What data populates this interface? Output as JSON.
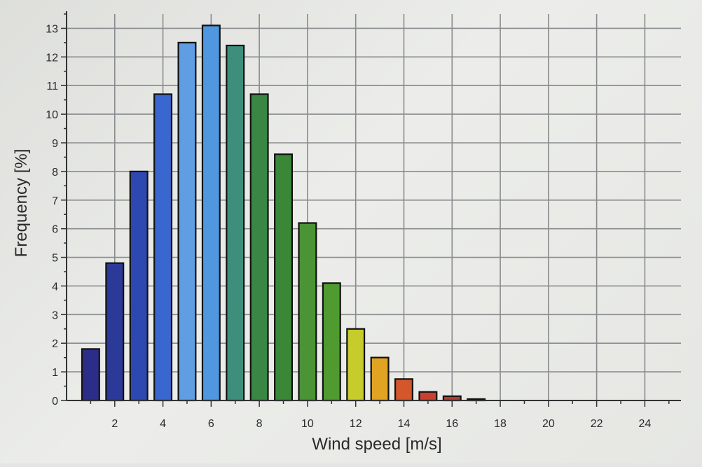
{
  "chart_data": {
    "type": "bar",
    "xlabel": "Wind speed [m/s]",
    "ylabel": "Frequency [%]",
    "x": [
      1,
      2,
      3,
      4,
      5,
      6,
      7,
      8,
      9,
      10,
      11,
      12,
      13,
      14,
      15,
      16,
      17
    ],
    "values": [
      1.8,
      4.8,
      8.0,
      10.7,
      12.5,
      13.1,
      12.4,
      10.7,
      8.6,
      6.2,
      4.1,
      2.5,
      1.5,
      0.75,
      0.3,
      0.15,
      0.05
    ],
    "bar_colors": [
      "#2b2d88",
      "#2b3a98",
      "#2e48b2",
      "#3a66cf",
      "#5f9ee3",
      "#4f97df",
      "#3d8f7c",
      "#3a8644",
      "#3b8738",
      "#4a9435",
      "#4f9b30",
      "#c6cc2c",
      "#e0a322",
      "#d4572c",
      "#c8402f",
      "#b43a30",
      "#a93530"
    ],
    "xlim": [
      0,
      25.5
    ],
    "ylim": [
      0,
      13.5
    ],
    "x_ticks": [
      2,
      4,
      6,
      8,
      10,
      12,
      14,
      16,
      18,
      20,
      22,
      24
    ],
    "x_tick_labels": [
      "2",
      "4",
      "6",
      "8",
      "10",
      "12",
      "14",
      "16",
      "18",
      "20",
      "22",
      "24"
    ],
    "y_ticks": [
      0,
      1,
      2,
      3,
      4,
      5,
      6,
      7,
      8,
      9,
      10,
      11,
      12,
      13
    ],
    "y_tick_labels": [
      "0",
      "1",
      "2",
      "3",
      "4",
      "5",
      "6",
      "7",
      "8",
      "9",
      "10",
      "11",
      "12",
      "13"
    ],
    "grid": true,
    "legend": "none"
  }
}
